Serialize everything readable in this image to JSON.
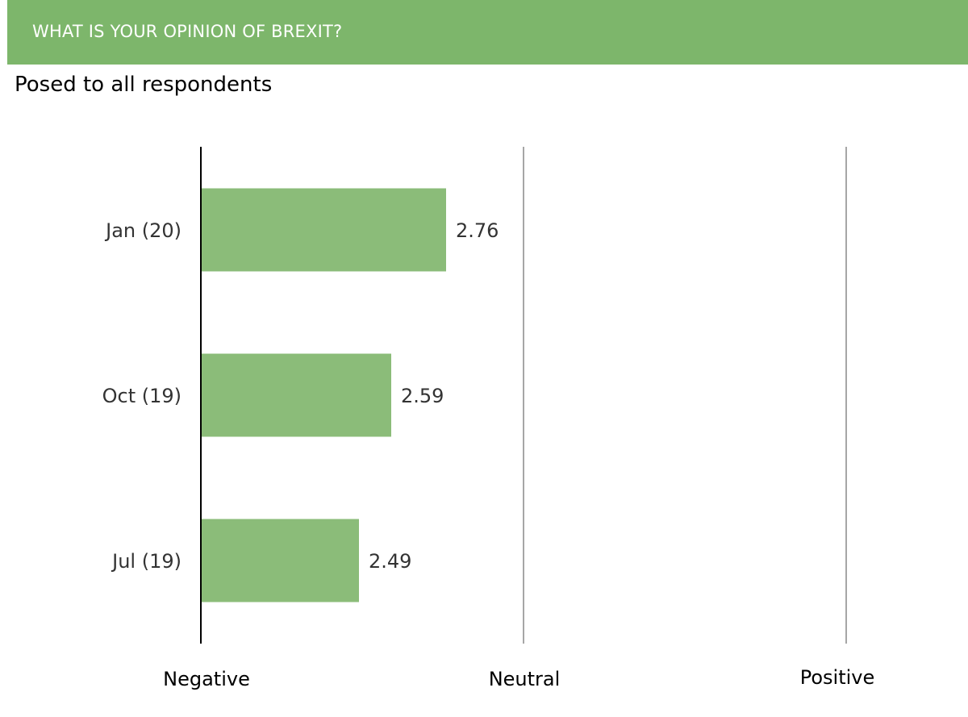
{
  "header": {
    "title": "WHAT IS YOUR OPINION OF BREXIT?",
    "band_color": "#7db66b"
  },
  "subtitle": "Posed to all respondents",
  "chart_data": {
    "type": "bar",
    "orientation": "horizontal",
    "categories": [
      "Jan (20)",
      "Oct (19)",
      "Jul (19)"
    ],
    "values": [
      2.76,
      2.59,
      2.49
    ],
    "xlim": [
      2,
      4
    ],
    "x_scale_labels": [
      "Negative",
      "Neutral",
      "Positive"
    ],
    "x_scale_values": [
      2,
      3,
      4
    ],
    "bar_color": "#8bbc79",
    "grid": true,
    "legend": "none"
  }
}
